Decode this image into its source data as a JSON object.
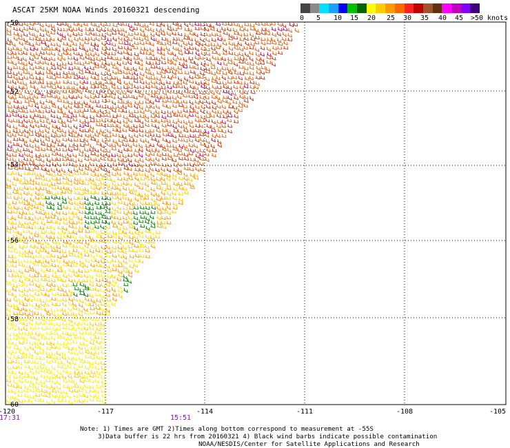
{
  "title": "ASCAT 25KM NOAA Winds 20160321 descending",
  "legend": {
    "units_label": ">50 knots",
    "ticks": [
      "0",
      "5",
      "10",
      "15",
      "20",
      "25",
      "30",
      "35",
      "40",
      "45"
    ],
    "colors": [
      "#444444",
      "#8a8a8a",
      "#00e0ff",
      "#1aa0ff",
      "#0000ff",
      "#00c000",
      "#006400",
      "#ffff00",
      "#ffcc00",
      "#ff9900",
      "#ff6600",
      "#ff2020",
      "#c00000",
      "#a0522d",
      "#603010",
      "#ff00ff",
      "#c000c0",
      "#8000ff",
      "#400080"
    ]
  },
  "map": {
    "lon_labels": [
      "-120",
      "-117",
      "-114",
      "-111",
      "-108",
      "-105"
    ],
    "lat_labels": [
      "-50",
      "-52",
      "-54",
      "-56",
      "-58",
      "-60"
    ],
    "time_labels": [
      "17:31",
      "15:51"
    ]
  },
  "notes": [
    "Note: 1) Times are GMT 2)Times along bottom correspond to measurement at -55S",
    "3)Data buffer is 22 hrs from 20160321 4) Black wind barbs indicate possible contamination",
    "NOAA/NESDIS/Center for Satellite Applications and Research"
  ]
}
